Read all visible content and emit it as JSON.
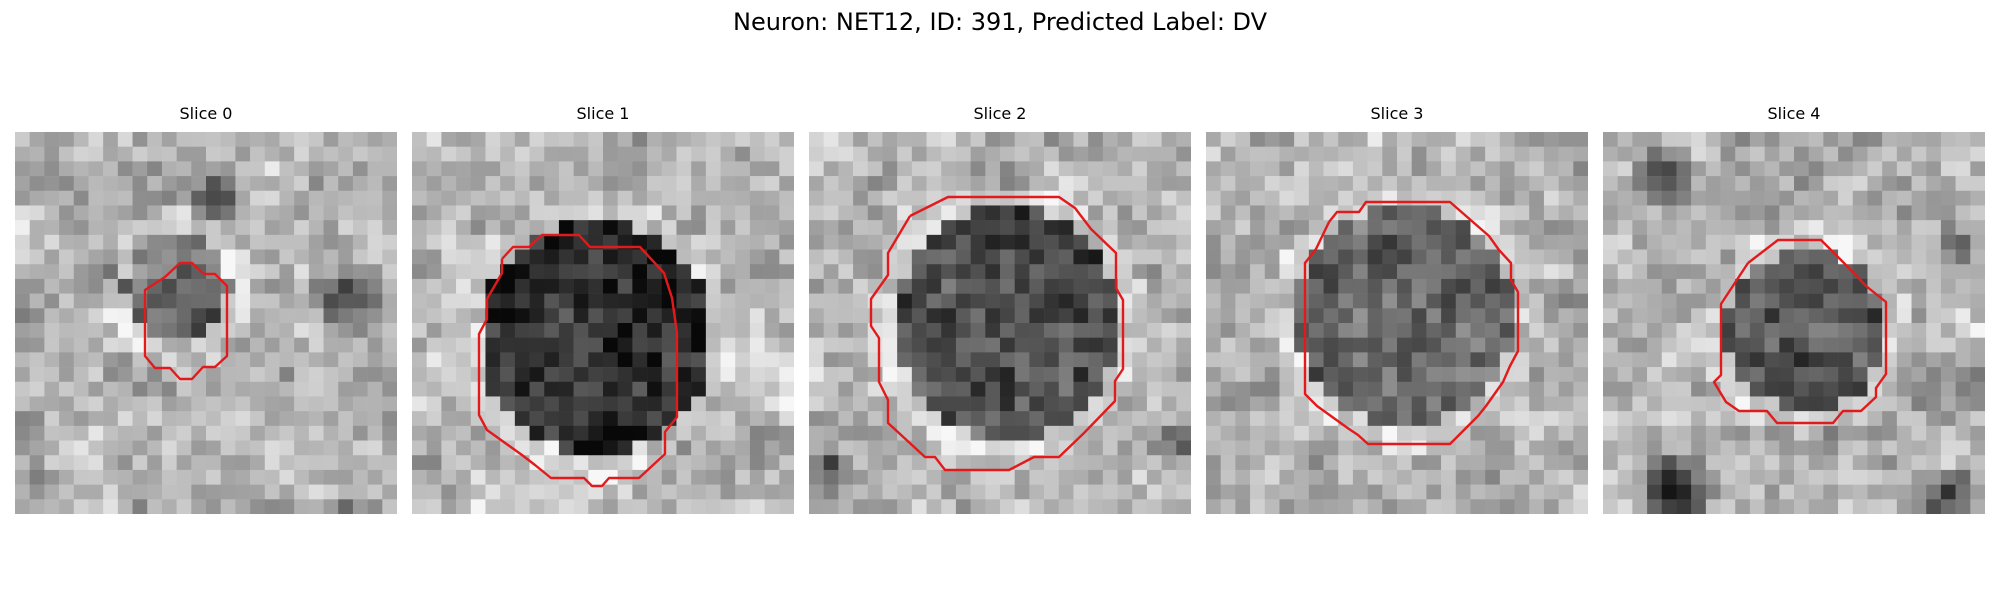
{
  "figure": {
    "title": "Neuron: NET12, ID: 391, Predicted Label: DV"
  },
  "slices": [
    {
      "label": "Slice 0"
    },
    {
      "label": "Slice 1"
    },
    {
      "label": "Slice 2"
    },
    {
      "label": "Slice 3"
    },
    {
      "label": "Slice 4"
    }
  ],
  "colors": {
    "contour": "#e31a1c",
    "background": "#ffffff"
  }
}
